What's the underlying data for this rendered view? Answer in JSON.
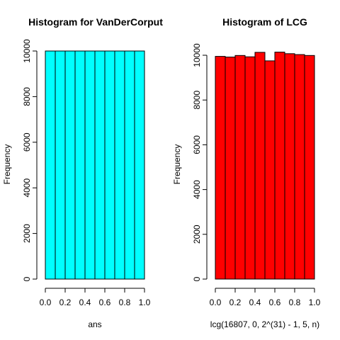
{
  "chart_data": [
    {
      "type": "bar",
      "title": "Histogram for VanDerCorput",
      "xlabel": "ans",
      "ylabel": "Frequency",
      "bin_edges": [
        0.0,
        0.1,
        0.2,
        0.3,
        0.4,
        0.5,
        0.6,
        0.7,
        0.8,
        0.9,
        1.0
      ],
      "values": [
        10000,
        10000,
        10000,
        10000,
        10000,
        10000,
        10000,
        10000,
        10000,
        10000
      ],
      "xlim": [
        0,
        1
      ],
      "ylim": [
        0,
        10000
      ],
      "x_ticks": [
        "0.0",
        "0.2",
        "0.4",
        "0.6",
        "0.8",
        "1.0"
      ],
      "y_ticks": [
        "0",
        "2000",
        "4000",
        "6000",
        "8000",
        "10000"
      ],
      "bar_color": "#00ffff",
      "grid": false
    },
    {
      "type": "bar",
      "title": "Histogram of LCG",
      "xlabel": "lcg(16807, 0, 2^(31) - 1, 5, n)",
      "ylabel": "Frequency",
      "bin_edges": [
        0.0,
        0.1,
        0.2,
        0.3,
        0.4,
        0.5,
        0.6,
        0.7,
        0.8,
        0.9,
        1.0
      ],
      "values": [
        9950,
        9920,
        9990,
        9930,
        10130,
        9750,
        10140,
        10070,
        10030,
        9990
      ],
      "xlim": [
        0,
        1
      ],
      "ylim": [
        0,
        10000
      ],
      "x_ticks": [
        "0.0",
        "0.2",
        "0.4",
        "0.6",
        "0.8",
        "1.0"
      ],
      "y_ticks": [
        "0",
        "2000",
        "4000",
        "6000",
        "8000",
        "10000"
      ],
      "bar_color": "#ff0000",
      "grid": false
    }
  ]
}
